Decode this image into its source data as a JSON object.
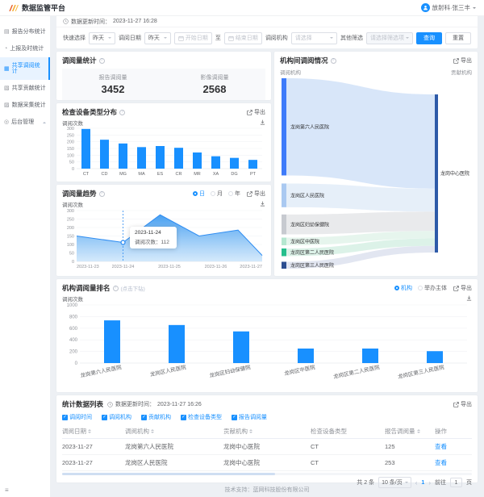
{
  "app": {
    "title": "数据监管平台",
    "user": "放射科·张三丰",
    "footer": "技术支持：蓝网科技股份有限公司"
  },
  "sidebar": {
    "items": [
      {
        "label": "报告分布统计",
        "icon": "▤",
        "icon_name": "report-distribution-icon",
        "active": false
      },
      {
        "label": "上报及时统计",
        "icon": "◔",
        "icon_name": "report-timeliness-icon",
        "active": false
      },
      {
        "label": "共享调阅统计",
        "icon": "▦",
        "icon_name": "share-access-icon",
        "active": true
      },
      {
        "label": "共享贡献统计",
        "icon": "▧",
        "icon_name": "share-contribution-icon",
        "active": false
      },
      {
        "label": "数据采集统计",
        "icon": "▨",
        "icon_name": "data-collection-icon",
        "active": false
      },
      {
        "label": "后台管理",
        "icon": "◎",
        "icon_name": "admin-icon",
        "active": false,
        "collapsible": true
      }
    ]
  },
  "update_bar": {
    "label": "数据更新时间：",
    "value": "2023-11-27 16:28"
  },
  "filters": {
    "quick_label": "快速选择",
    "quick_value": "昨天",
    "date_label": "调阅日期",
    "date_value": "昨天",
    "start_placeholder": "开始日期",
    "range_separator": "至",
    "end_placeholder": "结束日期",
    "org_label": "调阅机构",
    "org_placeholder": "请选择",
    "other_label": "其他筛选",
    "other_placeholder": "请选择筛选项",
    "search_label": "查询",
    "reset_label": "重置"
  },
  "stats_card": {
    "title": "调阅量统计",
    "stats": [
      {
        "label": "报告调阅量",
        "value": "3452"
      },
      {
        "label": "影像调阅量",
        "value": "2568"
      }
    ]
  },
  "device_card": {
    "title": "检查设备类型分布",
    "export": "导出",
    "ylabel": "调阅次数"
  },
  "trend_card": {
    "title": "调阅量趋势",
    "export": "导出",
    "ylabel": "调阅次数",
    "radios": [
      {
        "label": "日",
        "checked": true
      },
      {
        "label": "月",
        "checked": false
      },
      {
        "label": "年",
        "checked": false
      }
    ],
    "tooltip": {
      "date": "2023-11-24",
      "label": "调阅次数：",
      "value": "112"
    }
  },
  "sankey_card": {
    "title": "机构间调阅情况",
    "export": "导出",
    "left_label": "调阅机构",
    "right_label": "贡献机构"
  },
  "ranking_card": {
    "title": "机构调阅量排名",
    "hint": "(点击下钻)",
    "export": "导出",
    "ylabel": "调阅次数",
    "radios": [
      {
        "label": "机构",
        "checked": true
      },
      {
        "label": "举办主体",
        "checked": false
      }
    ]
  },
  "table_card": {
    "title": "统计数据列表",
    "update_label": "数据更新时间：",
    "update_value": "2023-11-27 16:26",
    "export": "导出",
    "checkboxes": [
      "调阅时间",
      "调阅机构",
      "贡献机构",
      "检查设备类型",
      "报告调阅量"
    ],
    "columns": [
      {
        "label": "调阅日期",
        "sortable": true
      },
      {
        "label": "调阅机构",
        "sortable": true
      },
      {
        "label": "贡献机构",
        "sortable": true
      },
      {
        "label": "检查设备类型",
        "sortable": false
      },
      {
        "label": "报告调阅量",
        "sortable": true
      },
      {
        "label": "操作",
        "sortable": false
      }
    ],
    "rows": [
      [
        "2023-11-27",
        "龙岗第六人民医院",
        "龙岗中心医院",
        "CT",
        "125",
        "查看"
      ],
      [
        "2023-11-27",
        "龙岗区人民医院",
        "龙岗中心医院",
        "CT",
        "253",
        "查看"
      ]
    ],
    "pagination": {
      "total": "共 2 条",
      "page_size": "10 条/页",
      "prev": "‹",
      "current": "1",
      "next": "›",
      "goto_label": "前往",
      "goto_value": "1",
      "goto_suffix": "页"
    }
  },
  "colors": {
    "primary": "#1890ff"
  },
  "chart_data": [
    {
      "id": "device",
      "type": "bar",
      "title": "检查设备类型分布",
      "xlabel": "",
      "ylabel": "调阅次数",
      "ylim": [
        0,
        300
      ],
      "yticks": [
        0,
        50,
        100,
        150,
        200,
        250,
        300
      ],
      "categories": [
        "CT",
        "CD",
        "MG",
        "MA",
        "ES",
        "CR",
        "MR",
        "XA",
        "DG",
        "PT"
      ],
      "values": [
        295,
        215,
        187,
        160,
        168,
        155,
        120,
        92,
        80,
        65
      ],
      "bar_color": "#1890ff",
      "grid": true,
      "legend": "none"
    },
    {
      "id": "trend",
      "type": "area",
      "title": "调阅量趋势",
      "ylabel": "调阅次数",
      "ylim": [
        0,
        300
      ],
      "yticks": [
        0,
        50,
        100,
        150,
        200,
        250,
        300
      ],
      "x_ticks": [
        "2023-11-23",
        "2023-11-24",
        "2023-11-25",
        "2023-11-26",
        "2023-11-27"
      ],
      "points": [
        {
          "pos": 0,
          "value": 150
        },
        {
          "pos": 0.25,
          "value": 112
        },
        {
          "pos": 0.45,
          "value": 275
        },
        {
          "pos": 0.66,
          "value": 150
        },
        {
          "pos": 0.87,
          "value": 185
        },
        {
          "pos": 1,
          "value": 35
        }
      ],
      "hover_index": 1,
      "hover": {
        "x": "2023-11-24",
        "value": 112
      },
      "line_color": "#2f8df2",
      "fill_top": "#3d9af0",
      "fill_bottom": "#c6e2fa",
      "grid": true
    },
    {
      "id": "ranking",
      "type": "bar",
      "title": "机构调阅量排名",
      "ylabel": "调阅次数",
      "ylim": [
        0,
        1000
      ],
      "yticks": [
        0,
        200,
        400,
        600,
        800,
        1000
      ],
      "categories": [
        "龙岗第六人民医院",
        "龙岗区人民医院",
        "龙岗区妇幼保健院",
        "龙岗区中医院",
        "龙岗区第二人民医院",
        "龙岗区第三人民医院"
      ],
      "values": [
        735,
        655,
        545,
        250,
        250,
        205
      ],
      "bar_color": "#1890ff",
      "grid": true
    },
    {
      "id": "sankey",
      "type": "sankey",
      "title": "机构间调阅情况",
      "source_label": "调阅机构",
      "target_label": "贡献机构",
      "target": {
        "name": "龙岗中心医院",
        "color": "#2d5aa8"
      },
      "links": [
        {
          "source": "龙岗第六人民医院",
          "target": "龙岗中心医院",
          "value": 127,
          "node_color": "#3e7bfa",
          "link_color": "#d5e4f8"
        },
        {
          "source": "龙岗区人民医院",
          "target": "龙岗中心医院",
          "value": 31,
          "node_color": "#aac9f1",
          "link_color": "#e4eef9"
        },
        {
          "source": "龙岗区妇幼保健院",
          "target": "龙岗中心医院",
          "value": 26,
          "node_color": "#c7cad0",
          "link_color": "#e7e8ea"
        },
        {
          "source": "龙岗区中医院",
          "target": "龙岗中心医院",
          "value": 10,
          "node_color": "#b5e7d0",
          "link_color": "#e4f4ec"
        },
        {
          "source": "龙岗区第二人民医院",
          "target": "龙岗中心医院",
          "value": 10,
          "node_color": "#25bf8c",
          "link_color": "#d9f1e6"
        },
        {
          "source": "龙岗区第三人民医院",
          "target": "龙岗中心医院",
          "value": 9,
          "node_color": "#2c4e90",
          "link_color": "#dfe4f0"
        }
      ]
    }
  ]
}
